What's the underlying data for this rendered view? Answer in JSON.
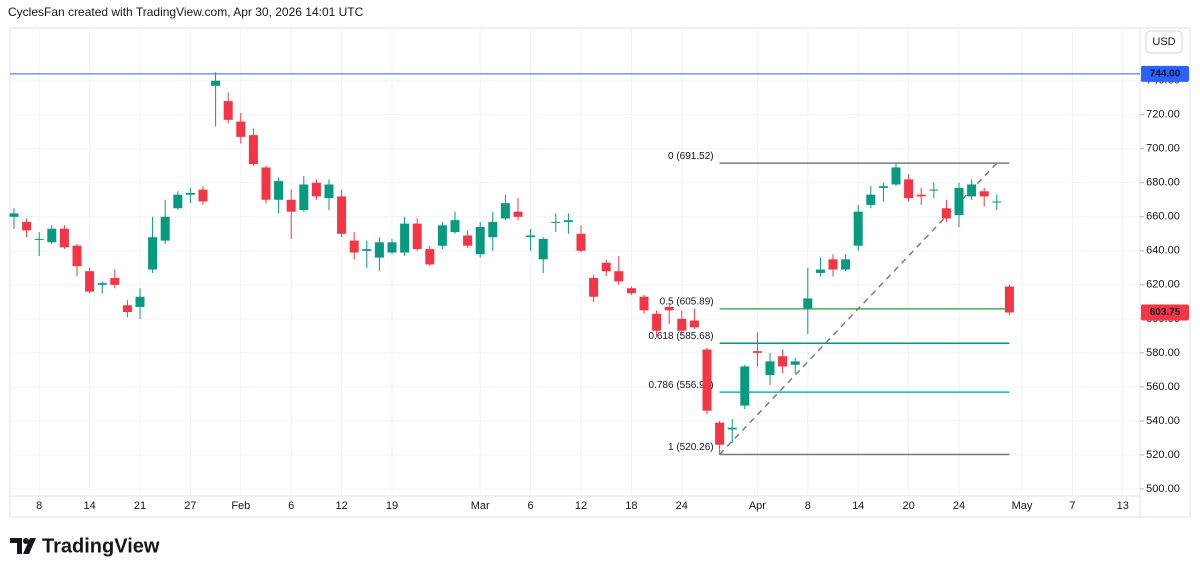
{
  "header": {
    "text": "CyclesFan created with TradingView.com, Apr 30, 2026 14:01 UTC"
  },
  "chart_data": {
    "type": "candlestick",
    "currency": "USD",
    "up_color": "#089981",
    "down_color": "#f23645",
    "grid": true,
    "categories": [
      null,
      null,
      "8",
      null,
      null,
      null,
      "14",
      null,
      null,
      null,
      "21",
      null,
      null,
      null,
      "27",
      null,
      null,
      null,
      "Feb",
      null,
      null,
      null,
      "6",
      null,
      null,
      null,
      "12",
      null,
      null,
      null,
      "19",
      null,
      null,
      null,
      null,
      null,
      null,
      "Mar",
      null,
      null,
      null,
      "6",
      null,
      null,
      null,
      "12",
      null,
      null,
      null,
      "18",
      null,
      null,
      null,
      "24",
      null,
      null,
      null,
      null,
      null,
      "Apr",
      null,
      null,
      null,
      "8",
      null,
      null,
      null,
      "14",
      null,
      null,
      null,
      "20",
      null,
      null,
      null,
      "24",
      null,
      null,
      null,
      null,
      "May",
      null,
      null,
      null,
      "7",
      null,
      null,
      null,
      "13",
      null
    ],
    "open": [
      660,
      657,
      647,
      645,
      653,
      643,
      628,
      620,
      624,
      608,
      607,
      629,
      646,
      665,
      673,
      676,
      737,
      728,
      716,
      708,
      689,
      670,
      670,
      664,
      680,
      671,
      672,
      646,
      640,
      636,
      639,
      639,
      656,
      641,
      643,
      651,
      649,
      638,
      648,
      659,
      663,
      648,
      635,
      657,
      657,
      650,
      624,
      633,
      628,
      618,
      613,
      603,
      607,
      600,
      599,
      582,
      539,
      535,
      549,
      581,
      567,
      578,
      573,
      606,
      627,
      635,
      629,
      643,
      667,
      677,
      679,
      682,
      673,
      676,
      665,
      661,
      672,
      675,
      669,
      619,
      null,
      null,
      null,
      null,
      null,
      null,
      null,
      null,
      null,
      null
    ],
    "high": [
      665,
      659,
      651,
      655,
      655,
      644,
      630,
      622,
      629,
      611,
      618,
      660,
      670,
      675,
      677,
      678,
      745,
      733,
      721,
      712,
      690,
      683,
      676,
      684,
      682,
      682,
      676,
      651,
      646,
      648,
      647,
      660,
      659,
      643,
      657,
      663,
      652,
      657,
      663,
      673,
      671,
      653,
      648,
      662,
      662,
      655,
      626,
      635,
      637,
      619,
      614,
      605,
      609,
      605,
      606,
      583,
      540,
      541,
      573,
      592,
      580,
      582,
      577,
      630,
      636,
      638,
      638,
      667,
      678,
      680,
      692,
      685,
      677,
      680,
      670,
      680,
      682,
      677,
      673,
      620,
      null,
      null,
      null,
      null,
      null,
      null,
      null,
      null,
      null,
      null
    ],
    "low": [
      653,
      648,
      637,
      644,
      641,
      625,
      615,
      615,
      618,
      601,
      600,
      627,
      644,
      664,
      668,
      667,
      713,
      715,
      703,
      690,
      668,
      662,
      647,
      663,
      670,
      664,
      648,
      635,
      630,
      628,
      638,
      637,
      640,
      631,
      641,
      650,
      642,
      636,
      640,
      658,
      658,
      640,
      627,
      651,
      650,
      639,
      610,
      625,
      620,
      614,
      603,
      589,
      597,
      591,
      594,
      544,
      520,
      527,
      547,
      572,
      561,
      568,
      568,
      591,
      625,
      625,
      628,
      640,
      665,
      669,
      678,
      669,
      667,
      671,
      657,
      654,
      670,
      666,
      664,
      602,
      null,
      null,
      null,
      null,
      null,
      null,
      null,
      null,
      null,
      null
    ],
    "close": [
      662,
      652,
      647,
      653,
      642,
      631,
      616,
      621,
      620,
      604,
      613,
      648,
      660,
      673,
      674,
      669,
      740,
      717,
      707,
      691,
      670,
      681,
      663,
      679,
      672,
      679,
      650,
      639,
      641,
      645,
      645,
      656,
      641,
      632,
      655,
      658,
      643,
      654,
      657,
      668,
      660,
      649,
      647,
      657,
      658,
      640,
      613,
      628,
      622,
      615,
      605,
      593,
      605,
      593,
      595,
      546,
      526,
      536,
      572,
      580,
      575,
      572,
      575,
      612,
      629,
      629,
      635,
      663,
      673,
      678,
      689,
      671,
      672,
      676,
      659,
      677,
      679,
      672,
      669,
      603.75,
      null,
      null,
      null,
      null,
      null,
      null,
      null,
      null,
      null,
      null
    ],
    "ylim": [
      483.5,
      771
    ],
    "yticks": [
      {
        "value": 500,
        "label": "500.00"
      },
      {
        "value": 520,
        "label": "520.00"
      },
      {
        "value": 540,
        "label": "540.00"
      },
      {
        "value": 560,
        "label": "560.00"
      },
      {
        "value": 580,
        "label": "580.00"
      },
      {
        "value": 600,
        "label": "600.00"
      },
      {
        "value": 620,
        "label": "620.00"
      },
      {
        "value": 640,
        "label": "640.00"
      },
      {
        "value": 660,
        "label": "660.00"
      },
      {
        "value": 680,
        "label": "680.00"
      },
      {
        "value": 700,
        "label": "700.00"
      },
      {
        "value": 720,
        "label": "720.00"
      },
      {
        "value": 740,
        "label": "740.00"
      }
    ],
    "horizontal_line": {
      "value": 744,
      "label": "744.00",
      "color": "#2962ff"
    },
    "fib_levels": [
      {
        "label": "0 (691.52)",
        "value": 691.52,
        "color": "#787b86"
      },
      {
        "label": "0.5 (605.89)",
        "value": 605.89,
        "color": "#4caf50"
      },
      {
        "label": "0.618 (585.68)",
        "value": 585.68,
        "color": "#009688"
      },
      {
        "label": "0.786 (556.90)",
        "value": 556.9,
        "color": "#00bcd4"
      },
      {
        "label": "1 (520.26)",
        "value": 520.26,
        "color": "#787b86"
      }
    ],
    "trend_line": [
      520.26,
      691.52
    ]
  },
  "footer": {
    "logo": "TradingView"
  }
}
